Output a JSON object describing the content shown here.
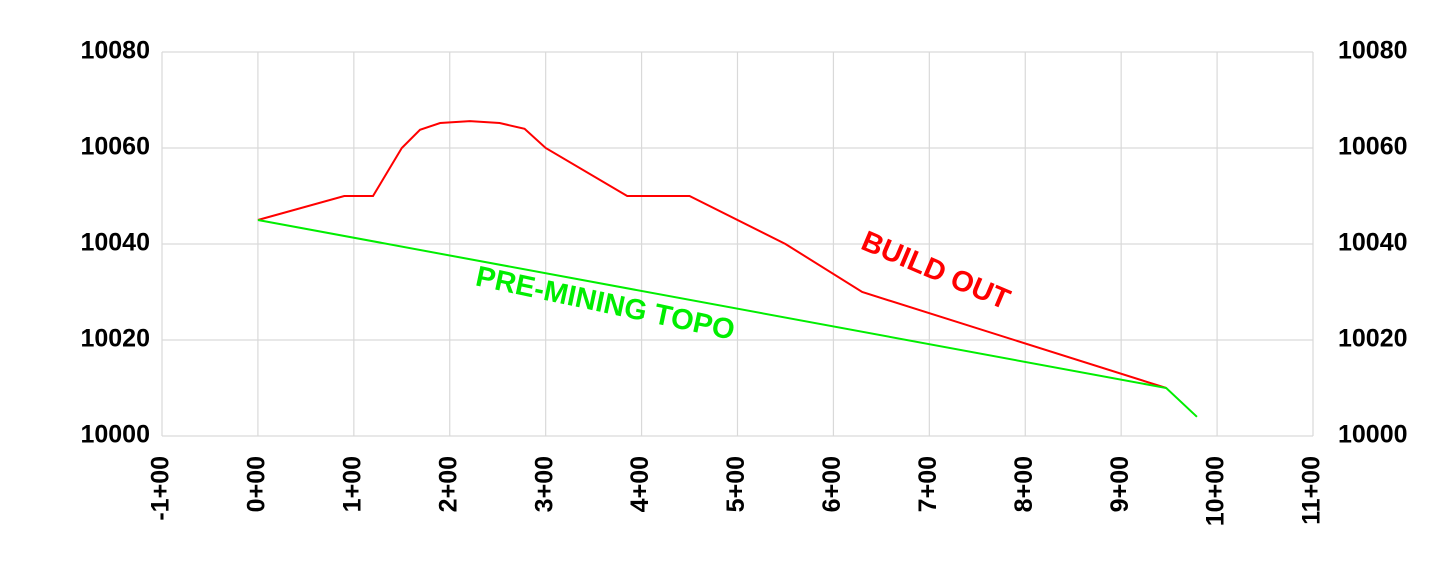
{
  "chart_data": {
    "type": "line",
    "annotations": [
      "BUILD OUT",
      "PRE-MINING TOPO"
    ],
    "series": [
      {
        "name": "BUILD OUT",
        "color": "#ff0000",
        "x": [
          0,
          90,
          120,
          150,
          169,
          190,
          221,
          252,
          278,
          300,
          385,
          450,
          550,
          630,
          947
        ],
        "values": [
          10045,
          10050,
          10050,
          10060,
          10063.8,
          10065.2,
          10065.6,
          10065.2,
          10064,
          10060,
          10050,
          10050,
          10040,
          10030,
          10010
        ]
      },
      {
        "name": "PRE-MINING TOPO",
        "color": "#00ee00",
        "x": [
          0,
          947,
          979
        ],
        "values": [
          10045,
          10010,
          10004
        ]
      }
    ],
    "xlim": [
      -100,
      1100
    ],
    "xticks": [
      {
        "value": -100,
        "label": "-1+00"
      },
      {
        "value": 0,
        "label": "0+00"
      },
      {
        "value": 100,
        "label": "1+00"
      },
      {
        "value": 200,
        "label": "2+00"
      },
      {
        "value": 300,
        "label": "3+00"
      },
      {
        "value": 400,
        "label": "4+00"
      },
      {
        "value": 500,
        "label": "5+00"
      },
      {
        "value": 600,
        "label": "6+00"
      },
      {
        "value": 700,
        "label": "7+00"
      },
      {
        "value": 800,
        "label": "8+00"
      },
      {
        "value": 900,
        "label": "9+00"
      },
      {
        "value": 1000,
        "label": "10+00"
      },
      {
        "value": 1100,
        "label": "11+00"
      }
    ],
    "ylim": [
      10000,
      10080
    ],
    "yticks": [
      10000,
      10020,
      10040,
      10060,
      10080
    ],
    "y2lim": [
      10000,
      10080
    ],
    "y2ticks": [
      10000,
      10020,
      10040,
      10060,
      10080
    ],
    "grid": true
  }
}
